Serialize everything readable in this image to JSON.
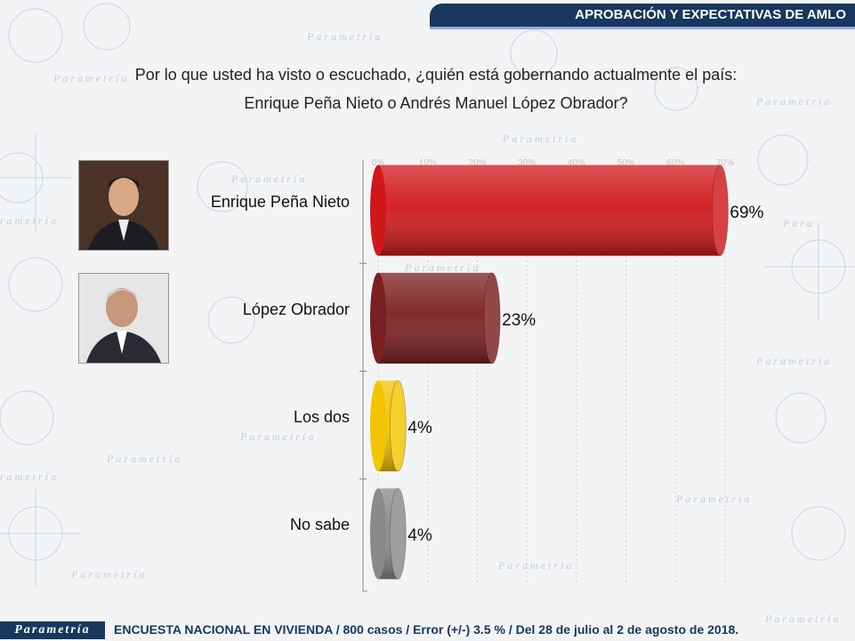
{
  "header": {
    "title": "APROBACIÓN Y EXPECTATIVAS DE AMLO"
  },
  "question": {
    "line1": "Por lo que usted ha visto o escuchado, ¿quién está gobernando actualmente el país:",
    "line2": "Enrique Peña Nieto o Andrés Manuel López Obrador?"
  },
  "footer": {
    "logo": "Parametría",
    "note": "ENCUESTA NACIONAL EN VIVIENDA / 800 casos / Error (+/-) 3.5 % / Del 28 de julio al 2 de agosto de 2018."
  },
  "chart_data": {
    "type": "bar",
    "orientation": "horizontal",
    "categories": [
      "Enrique Peña Nieto",
      "López Obrador",
      "Los dos",
      "No sabe"
    ],
    "values": [
      69,
      23,
      4,
      4
    ],
    "value_labels": [
      "69%",
      "23%",
      "4%",
      "4%"
    ],
    "colors": [
      "#d0181b",
      "#7a1f22",
      "#f2c500",
      "#8a8a8a"
    ],
    "xlim": [
      0,
      70
    ],
    "ticks": [
      "0%",
      "10%",
      "20%",
      "30%",
      "40%",
      "50%",
      "60%",
      "70%"
    ],
    "grid": true
  }
}
